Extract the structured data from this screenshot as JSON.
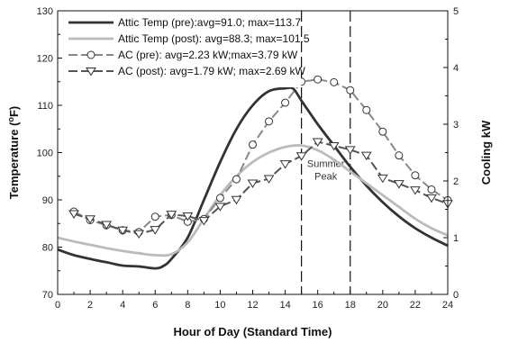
{
  "chart_data": {
    "type": "line",
    "xlabel": "Hour of Day (Standard Time)",
    "ylabel": "Temperature (°F)",
    "ylabel_parts": [
      "Temperature (",
      "o",
      "F)"
    ],
    "y2label": "Cooling kW",
    "xlim": [
      0,
      24
    ],
    "ylim": [
      70,
      130
    ],
    "y2lim": [
      0,
      5
    ],
    "x_ticks": [
      "0",
      "2",
      "4",
      "6",
      "8",
      "10",
      "12",
      "14",
      "16",
      "18",
      "20",
      "22",
      "24"
    ],
    "y_ticks": [
      "70",
      "80",
      "90",
      "100",
      "110",
      "120",
      "130"
    ],
    "y2_ticks": [
      "0",
      "1",
      "2",
      "3",
      "4",
      "5"
    ],
    "grid": false,
    "legend_position": "top-left",
    "series": [
      {
        "name": "Attic Temp (pre):avg=91.0; max=113.7",
        "axis": "left",
        "color": "#333333",
        "style": "solid-thick",
        "points": [
          [
            0,
            79.5
          ],
          [
            1,
            78.3
          ],
          [
            2,
            77.5
          ],
          [
            3,
            76.8
          ],
          [
            4,
            76.1
          ],
          [
            5,
            75.9
          ],
          [
            6,
            75.5
          ],
          [
            6.5,
            76.0
          ],
          [
            7,
            77.5
          ],
          [
            8,
            82.0
          ],
          [
            9,
            90.0
          ],
          [
            10,
            98.0
          ],
          [
            11,
            105.0
          ],
          [
            12,
            110.0
          ],
          [
            13,
            113.0
          ],
          [
            14,
            113.6
          ],
          [
            14.5,
            113.5
          ],
          [
            15,
            111.0
          ],
          [
            16,
            106.0
          ],
          [
            17,
            101.5
          ],
          [
            18,
            97.0
          ],
          [
            19,
            93.0
          ],
          [
            20,
            89.5
          ],
          [
            21,
            86.5
          ],
          [
            22,
            84.0
          ],
          [
            23,
            82.0
          ],
          [
            24,
            80.3
          ]
        ]
      },
      {
        "name": "Attic Temp (post): avg=88.3; max=101.5",
        "axis": "left",
        "color": "#bbbbbb",
        "style": "solid-thick",
        "points": [
          [
            0,
            82.0
          ],
          [
            1,
            81.2
          ],
          [
            2,
            80.5
          ],
          [
            3,
            79.8
          ],
          [
            4,
            79.2
          ],
          [
            5,
            78.7
          ],
          [
            6,
            78.3
          ],
          [
            7,
            78.5
          ],
          [
            8,
            81.0
          ],
          [
            9,
            86.0
          ],
          [
            10,
            91.0
          ],
          [
            11,
            95.0
          ],
          [
            12,
            98.0
          ],
          [
            13,
            100.0
          ],
          [
            14,
            101.2
          ],
          [
            15,
            101.5
          ],
          [
            16,
            100.5
          ],
          [
            17,
            98.5
          ],
          [
            18,
            96.0
          ],
          [
            19,
            93.5
          ],
          [
            20,
            91.0
          ],
          [
            21,
            88.5
          ],
          [
            22,
            86.0
          ],
          [
            23,
            84.0
          ],
          [
            24,
            82.5
          ]
        ]
      },
      {
        "name": "AC (pre): avg=2.23 kW;max=3.79 kW",
        "axis": "right",
        "color": "#888888",
        "style": "dash",
        "marker": "circle",
        "points": [
          [
            1,
            1.46
          ],
          [
            2,
            1.31
          ],
          [
            3,
            1.22
          ],
          [
            4,
            1.13
          ],
          [
            5,
            1.1
          ],
          [
            6,
            1.37
          ],
          [
            7,
            1.4
          ],
          [
            8,
            1.28
          ],
          [
            9,
            1.33
          ],
          [
            10,
            1.7
          ],
          [
            11,
            2.03
          ],
          [
            12,
            2.64
          ],
          [
            13,
            3.05
          ],
          [
            14,
            3.38
          ],
          [
            15,
            3.75
          ],
          [
            16,
            3.79
          ],
          [
            17,
            3.74
          ],
          [
            18,
            3.6
          ],
          [
            19,
            3.25
          ],
          [
            20,
            2.87
          ],
          [
            21,
            2.45
          ],
          [
            22,
            2.1
          ],
          [
            23,
            1.85
          ],
          [
            24,
            1.66
          ]
        ]
      },
      {
        "name": "AC (post): avg=1.79 kW; max=2.69 kW",
        "axis": "right",
        "color": "#555555",
        "style": "dash",
        "marker": "triangle-down",
        "points": [
          [
            1,
            1.42
          ],
          [
            2,
            1.33
          ],
          [
            3,
            1.23
          ],
          [
            4,
            1.13
          ],
          [
            5,
            1.07
          ],
          [
            6,
            1.14
          ],
          [
            7,
            1.41
          ],
          [
            8,
            1.38
          ],
          [
            9,
            1.3
          ],
          [
            10,
            1.55
          ],
          [
            11,
            1.67
          ],
          [
            12,
            1.96
          ],
          [
            13,
            2.04
          ],
          [
            14,
            2.3
          ],
          [
            15,
            2.44
          ],
          [
            16,
            2.69
          ],
          [
            17,
            2.62
          ],
          [
            18,
            2.55
          ],
          [
            19,
            2.45
          ],
          [
            20,
            2.05
          ],
          [
            21,
            1.95
          ],
          [
            22,
            1.84
          ],
          [
            23,
            1.7
          ],
          [
            24,
            1.6
          ]
        ]
      }
    ],
    "vertical_lines": [
      15,
      18
    ],
    "annotations": [
      {
        "text_lines": [
          "Summer",
          "Peak"
        ],
        "x": 16.5,
        "y": 97
      }
    ]
  }
}
